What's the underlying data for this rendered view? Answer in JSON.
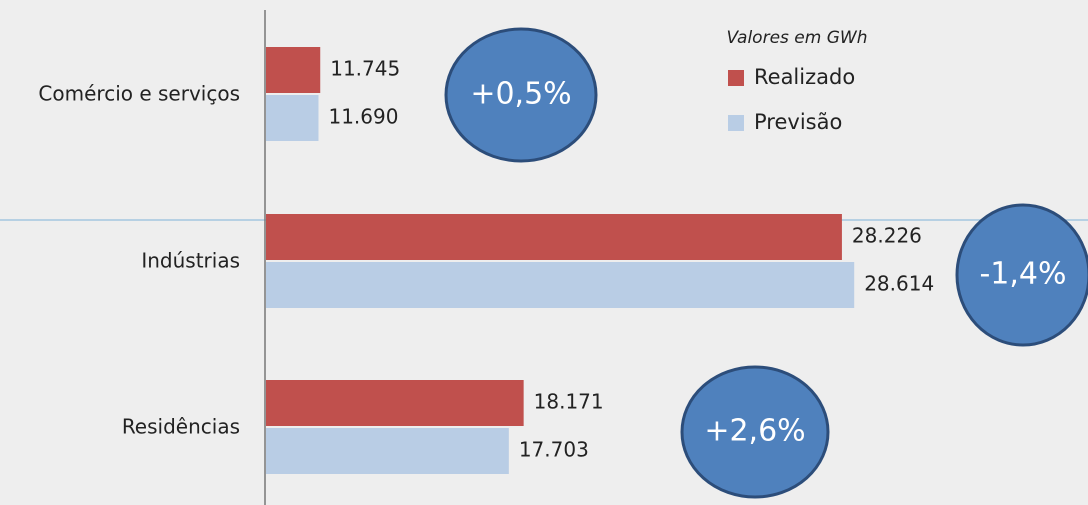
{
  "chart_data": {
    "type": "barh",
    "categories": [
      "Comércio e serviços",
      "Indústrias",
      "Residências"
    ],
    "series": [
      {
        "name": "Realizado",
        "color": "#c0504d",
        "values": [
          11745,
          28226,
          18171
        ],
        "value_labels": [
          "11.745",
          "28.226",
          "18.171"
        ]
      },
      {
        "name": "Previsão",
        "color": "#b9cde5",
        "values": [
          11690,
          28614,
          17703
        ],
        "value_labels": [
          "11.690",
          "28.614",
          "17.703"
        ]
      }
    ],
    "xlim": [
      10000,
      36000
    ],
    "legend_title": "Valores em GWh",
    "annotations": [
      "+0,5%",
      "-1,4%",
      "+2,6%"
    ]
  }
}
